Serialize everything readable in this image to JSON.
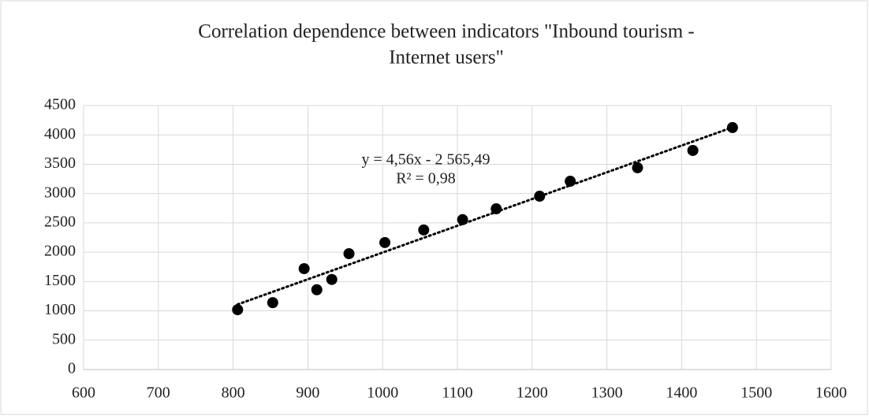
{
  "chart_data": {
    "type": "scatter",
    "title": [
      "Correlation dependence between indicators \"Inbound tourism -",
      "Internet users\""
    ],
    "x": [
      806,
      853,
      895,
      912,
      932,
      955,
      1003,
      1055,
      1107,
      1152,
      1210,
      1251,
      1341,
      1415,
      1468
    ],
    "series": [
      {
        "color": "#000000",
        "values": [
          1020,
          1140,
          1720,
          1360,
          1535,
          1975,
          2165,
          2380,
          2555,
          2740,
          2955,
          3210,
          3440,
          3735,
          4125
        ]
      }
    ],
    "trendline": {
      "slope": 4.56,
      "intercept": -2565.49,
      "label": "y = 4,56x - 2 565,49",
      "r2_label": "R² = 0,98"
    },
    "xlim": [
      600,
      1600
    ],
    "xticks": [
      600,
      700,
      800,
      900,
      1000,
      1100,
      1200,
      1300,
      1400,
      1500,
      1600
    ],
    "ylim": [
      0,
      4500
    ],
    "yticks": [
      0,
      500,
      1000,
      1500,
      2000,
      2500,
      3000,
      3500,
      4000,
      4500
    ],
    "grid": true
  }
}
